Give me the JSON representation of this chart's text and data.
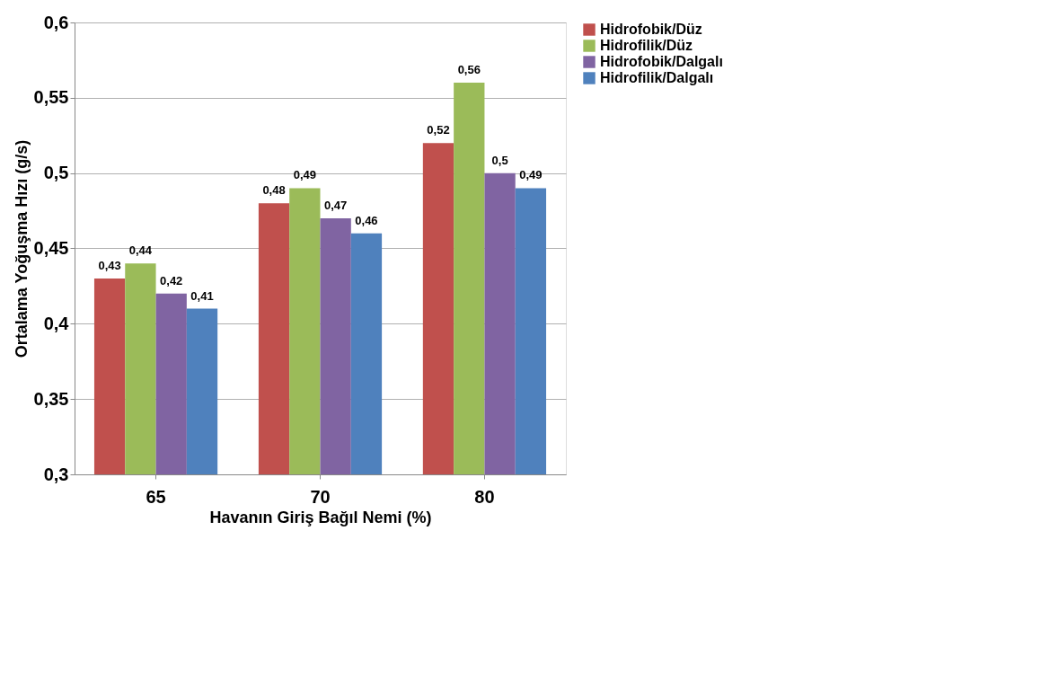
{
  "chart_data": {
    "type": "bar",
    "xlabel": "Havanın Giriş Bağıl Nemi (%)",
    "ylabel": "Ortalama Yoğuşma Hızı  (g/s)",
    "categories": [
      "65",
      "70",
      "80"
    ],
    "series": [
      {
        "name": "Hidrofobik/Düz",
        "color": "#c0504d",
        "values": [
          0.43,
          0.48,
          0.52
        ],
        "value_labels": [
          "0,43",
          "0,48",
          "0,52"
        ]
      },
      {
        "name": "Hidrofilik/Düz",
        "color": "#9bbb59",
        "values": [
          0.44,
          0.49,
          0.56
        ],
        "value_labels": [
          "0,44",
          "0,49",
          "0,56"
        ]
      },
      {
        "name": "Hidrofobik/Dalgalı",
        "color": "#8064a2",
        "values": [
          0.42,
          0.47,
          0.5
        ],
        "value_labels": [
          "0,42",
          "0,47",
          "0,5"
        ]
      },
      {
        "name": "Hidrofilik/Dalgalı",
        "color": "#4f81bd",
        "values": [
          0.41,
          0.46,
          0.49
        ],
        "value_labels": [
          "0,41",
          "0,46",
          "0,49"
        ]
      }
    ],
    "ylim": [
      0.3,
      0.6
    ],
    "yticks": [
      {
        "value": 0.3,
        "label": "0,3"
      },
      {
        "value": 0.35,
        "label": "0,35"
      },
      {
        "value": 0.4,
        "label": "0,4"
      },
      {
        "value": 0.45,
        "label": "0,45"
      },
      {
        "value": 0.5,
        "label": "0,5"
      },
      {
        "value": 0.55,
        "label": "0,55"
      },
      {
        "value": 0.6,
        "label": "0,6"
      }
    ],
    "grid": "y",
    "legend": "right"
  }
}
